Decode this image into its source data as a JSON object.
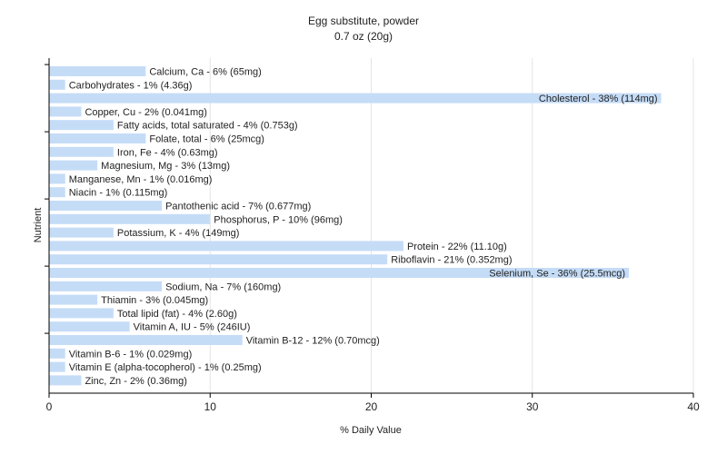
{
  "chart_data": {
    "type": "bar",
    "orientation": "horizontal",
    "title": "Egg substitute, powder",
    "subtitle": "0.7 oz (20g)",
    "xlabel": "% Daily Value",
    "ylabel": "Nutrient",
    "xlim": [
      0,
      40
    ],
    "xticks": [
      0,
      10,
      20,
      30,
      40
    ],
    "grid": true,
    "bar_color": "#c5dcf7",
    "categories": [
      "Calcium, Ca - 6% (65mg)",
      "Carbohydrates - 1% (4.36g)",
      "Cholesterol - 38% (114mg)",
      "Copper, Cu - 2% (0.041mg)",
      "Fatty acids, total saturated - 4% (0.753g)",
      "Folate, total - 6% (25mcg)",
      "Iron, Fe - 4% (0.63mg)",
      "Magnesium, Mg - 3% (13mg)",
      "Manganese, Mn - 1% (0.016mg)",
      "Niacin - 1% (0.115mg)",
      "Pantothenic acid - 7% (0.677mg)",
      "Phosphorus, P - 10% (96mg)",
      "Potassium, K - 4% (149mg)",
      "Protein - 22% (11.10g)",
      "Riboflavin - 21% (0.352mg)",
      "Selenium, Se - 36% (25.5mcg)",
      "Sodium, Na - 7% (160mg)",
      "Thiamin - 3% (0.045mg)",
      "Total lipid (fat) - 4% (2.60g)",
      "Vitamin A, IU - 5% (246IU)",
      "Vitamin B-12 - 12% (0.70mcg)",
      "Vitamin B-6 - 1% (0.029mg)",
      "Vitamin E (alpha-tocopherol) - 1% (0.25mg)",
      "Zinc, Zn - 2% (0.36mg)"
    ],
    "values": [
      6,
      1,
      38,
      2,
      4,
      6,
      4,
      3,
      1,
      1,
      7,
      10,
      4,
      22,
      21,
      36,
      7,
      3,
      4,
      5,
      12,
      1,
      1,
      2
    ]
  }
}
